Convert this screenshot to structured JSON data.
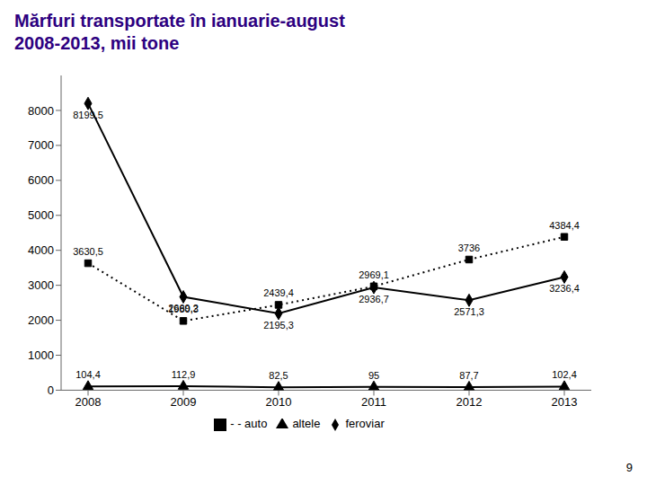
{
  "chart_data": {
    "type": "line",
    "title": "Mărfuri transportate în ianuarie-august",
    "subtitle": "2008-2013, mii tone",
    "annotations": [
      "9"
    ],
    "categories": [
      "2008",
      "2009",
      "2010",
      "2011",
      "2012",
      "2013"
    ],
    "series": [
      {
        "name": "feroviar",
        "color": "#000000",
        "marker": "diamond",
        "line_style": "solid",
        "values": [
          8199.5,
          2669.2,
          2195.3,
          2936.7,
          2571.3,
          3236.4
        ],
        "value_labels": [
          "8199,5",
          "2669,2",
          "2195,3",
          "2936,7",
          "2571,3",
          "3236,4"
        ]
      },
      {
        "name": "- - auto",
        "color": "#000000",
        "marker": "square",
        "line_style": "dotted",
        "values": [
          3630.5,
          1980.3,
          2439.4,
          2969.1,
          3736.0,
          4384.4
        ],
        "value_labels": [
          "3630,5",
          "1980,3",
          "2439,4",
          "2969,1",
          "3736",
          "4384,4"
        ]
      },
      {
        "name": "altele",
        "color": "#000000",
        "marker": "triangle",
        "line_style": "solid",
        "values": [
          104.4,
          112.9,
          82.5,
          95.0,
          87.7,
          102.4
        ],
        "value_labels": [
          "104,4",
          "112,9",
          "82,5",
          "95",
          "87,7",
          "102,4"
        ]
      }
    ],
    "ylim": [
      0,
      9000
    ],
    "yticks": [
      0,
      1000,
      2000,
      3000,
      4000,
      5000,
      6000,
      7000,
      8000
    ],
    "grid": false,
    "legend": "bottom",
    "data_labels": true
  }
}
